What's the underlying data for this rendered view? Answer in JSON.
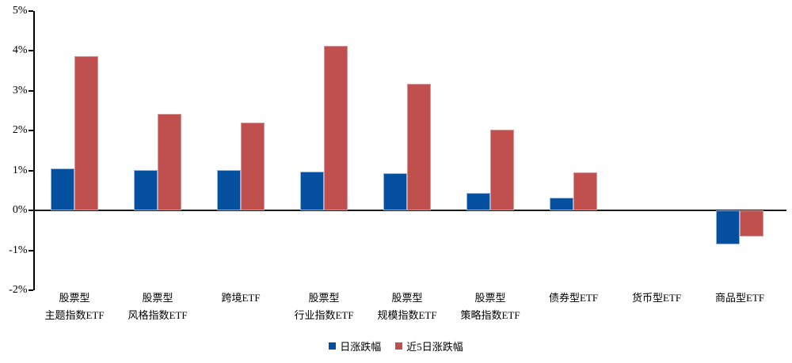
{
  "chart_data": {
    "type": "bar",
    "title": "",
    "xlabel": "",
    "ylabel": "",
    "grid": false,
    "legend_position": "bottom-center",
    "background_color": "#ffffff",
    "axis_color": "#000000",
    "categories": [
      {
        "line1": "股票型",
        "line2": "主题指数ETF"
      },
      {
        "line1": "股票型",
        "line2": "风格指数ETF"
      },
      {
        "line1": "跨境ETF",
        "line2": ""
      },
      {
        "line1": "股票型",
        "line2": "行业指数ETF"
      },
      {
        "line1": "股票型",
        "line2": "规模指数ETF"
      },
      {
        "line1": "股票型",
        "line2": "策略指数ETF"
      },
      {
        "line1": "债券型ETF",
        "line2": ""
      },
      {
        "line1": "货币型ETF",
        "line2": ""
      },
      {
        "line1": "商品型ETF",
        "line2": ""
      }
    ],
    "series": [
      {
        "name": "日涨跌幅",
        "color": "#04509E",
        "border_color": "#8DB4E2",
        "values": [
          1.06,
          1.02,
          1.01,
          0.97,
          0.94,
          0.43,
          0.33,
          0,
          -0.84
        ]
      },
      {
        "name": "近5日涨跌幅",
        "color": "#C0504D",
        "border_color": "#D99694",
        "values": [
          3.86,
          2.43,
          2.21,
          4.12,
          3.17,
          2.03,
          0.95,
          0,
          -0.66
        ]
      }
    ],
    "y_axis": {
      "min": -2,
      "max": 5,
      "tick_values": [
        5,
        4,
        3,
        2,
        1,
        0,
        -1,
        -2
      ],
      "tick_labels": [
        "5%",
        "4%",
        "3%",
        "2%",
        "1%",
        "0%",
        "-1%",
        "-2%"
      ]
    },
    "ylim": [
      -2,
      5
    ]
  }
}
